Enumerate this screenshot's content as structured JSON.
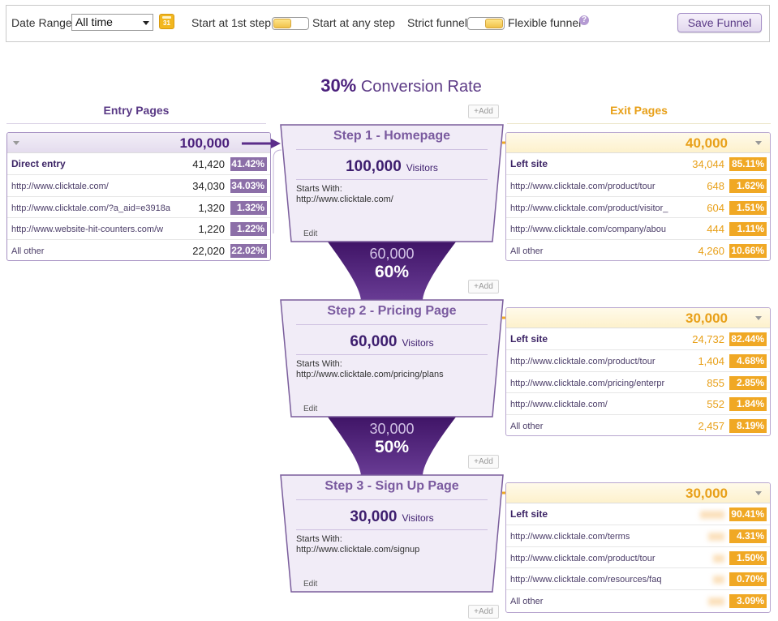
{
  "toolbar": {
    "date_range_label": "Date Range",
    "date_range_value": "All time",
    "calendar_day": "31",
    "start_first_label": "Start at 1st step",
    "start_any_label": "Start at any step",
    "strict_label": "Strict funnel",
    "flexible_label": "Flexible funnel",
    "help": "?",
    "save_label": "Save Funnel"
  },
  "conversion": {
    "rate": "30%",
    "label": "Conversion Rate"
  },
  "add_label": "+Add",
  "entry": {
    "title": "Entry Pages",
    "total": "100,000",
    "rows": [
      {
        "label": "Direct entry",
        "value": "41,420",
        "pct": "41.42%"
      },
      {
        "label": "http://www.clicktale.com/",
        "value": "34,030",
        "pct": "34.03%"
      },
      {
        "label": "http://www.clicktale.com/?a_aid=e3918a",
        "value": "1,320",
        "pct": "1.32%"
      },
      {
        "label": "http://www.website-hit-counters.com/w",
        "value": "1,220",
        "pct": "1.22%"
      },
      {
        "label": "All other",
        "value": "22,020",
        "pct": "22.02%"
      }
    ]
  },
  "exit_title": "Exit Pages",
  "steps": [
    {
      "title": "Step 1 - Homepage",
      "visitors": "100,000",
      "visitors_label": "Visitors",
      "starts_with_label": "Starts With:",
      "url": "http://www.clicktale.com/",
      "edit": "Edit",
      "exit": {
        "total": "40,000",
        "rows": [
          {
            "label": "Left site",
            "value": "34,044",
            "pct": "85.11%"
          },
          {
            "label": "http://www.clicktale.com/product/tour",
            "value": "648",
            "pct": "1.62%"
          },
          {
            "label": "http://www.clicktale.com/product/visitor_",
            "value": "604",
            "pct": "1.51%"
          },
          {
            "label": "http://www.clicktale.com/company/abou",
            "value": "444",
            "pct": "1.11%"
          },
          {
            "label": "All other",
            "value": "4,260",
            "pct": "10.66%"
          }
        ]
      }
    },
    {
      "title": "Step 2 - Pricing Page",
      "visitors": "60,000",
      "visitors_label": "Visitors",
      "starts_with_label": "Starts With:",
      "url": "http://www.clicktale.com/pricing/plans",
      "edit": "Edit",
      "exit": {
        "total": "30,000",
        "rows": [
          {
            "label": "Left site",
            "value": "24,732",
            "pct": "82.44%"
          },
          {
            "label": "http://www.clicktale.com/product/tour",
            "value": "1,404",
            "pct": "4.68%"
          },
          {
            "label": "http://www.clicktale.com/pricing/enterpr",
            "value": "855",
            "pct": "2.85%"
          },
          {
            "label": "http://www.clicktale.com/",
            "value": "552",
            "pct": "1.84%"
          },
          {
            "label": "All other",
            "value": "2,457",
            "pct": "8.19%"
          }
        ]
      }
    },
    {
      "title": "Step 3 - Sign Up Page",
      "visitors": "30,000",
      "visitors_label": "Visitors",
      "starts_with_label": "Starts With:",
      "url": "http://www.clicktale.com/signup",
      "edit": "Edit",
      "exit": {
        "total": "30,000",
        "rows": [
          {
            "label": "Left site",
            "value": "",
            "pct": "90.41%"
          },
          {
            "label": "http://www.clicktale.com/terms",
            "value": "",
            "pct": "4.31%"
          },
          {
            "label": "http://www.clicktale.com/product/tour",
            "value": "",
            "pct": "1.50%"
          },
          {
            "label": "http://www.clicktale.com/resources/faq",
            "value": "",
            "pct": "0.70%"
          },
          {
            "label": "All other",
            "value": "",
            "pct": "3.09%"
          }
        ]
      }
    }
  ],
  "transitions": [
    {
      "count": "60,000",
      "pct": "60%"
    },
    {
      "count": "30,000",
      "pct": "50%"
    }
  ]
}
